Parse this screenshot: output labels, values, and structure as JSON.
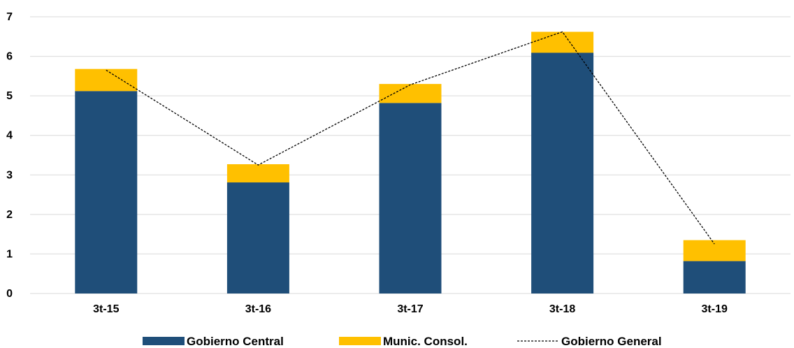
{
  "chart_data": {
    "type": "bar",
    "stacked": true,
    "categories": [
      "3t-15",
      "3t-16",
      "3t-17",
      "3t-18",
      "3t-19"
    ],
    "series": [
      {
        "name": "Gobierno Central",
        "type": "bar",
        "color": "#1F4E79",
        "values": [
          5.12,
          2.81,
          4.82,
          6.09,
          0.82
        ]
      },
      {
        "name": "Munic. Consol.",
        "type": "bar",
        "color": "#FFC000",
        "values": [
          0.56,
          0.46,
          0.48,
          0.53,
          0.53
        ]
      },
      {
        "name": "Gobierno General",
        "type": "line",
        "style": "dashed",
        "color": "#000000",
        "values": [
          5.65,
          3.25,
          5.28,
          6.62,
          1.25
        ]
      }
    ],
    "ylim": [
      0,
      7
    ],
    "yticks": [
      0,
      1,
      2,
      3,
      4,
      5,
      6,
      7
    ],
    "grid": true,
    "legend": "bottom"
  }
}
